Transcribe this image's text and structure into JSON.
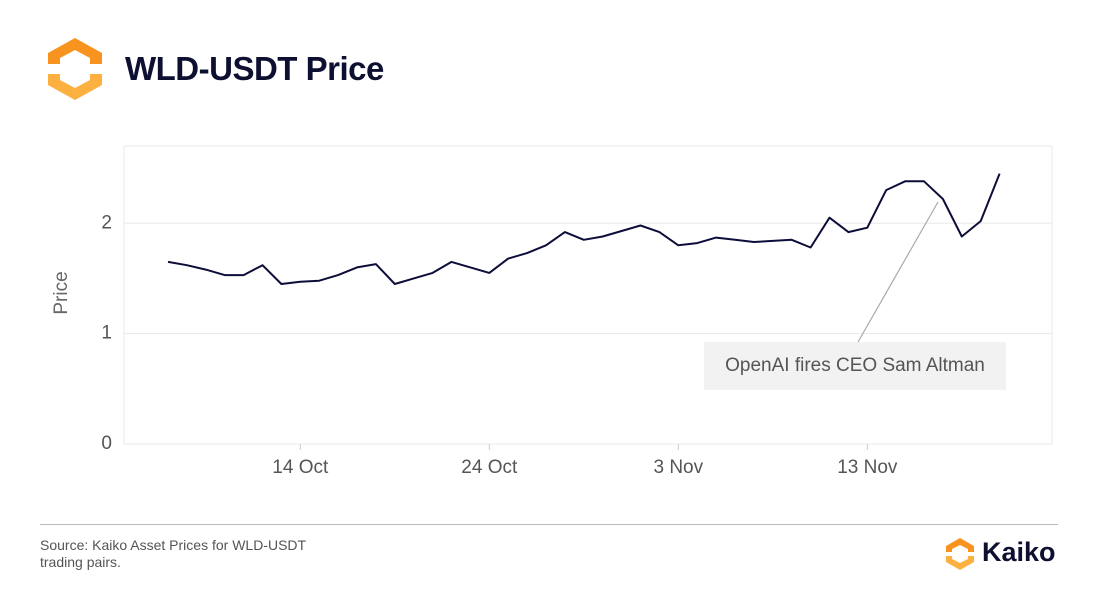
{
  "header": {
    "title": "WLD-USDT Price"
  },
  "chart_data": {
    "type": "line",
    "y_label": "Price",
    "x": [
      "7 Oct",
      "8 Oct",
      "9 Oct",
      "10 Oct",
      "11 Oct",
      "12 Oct",
      "13 Oct",
      "14 Oct",
      "15 Oct",
      "16 Oct",
      "17 Oct",
      "18 Oct",
      "19 Oct",
      "20 Oct",
      "21 Oct",
      "22 Oct",
      "23 Oct",
      "24 Oct",
      "25 Oct",
      "26 Oct",
      "27 Oct",
      "28 Oct",
      "29 Oct",
      "30 Oct",
      "31 Oct",
      "1 Nov",
      "2 Nov",
      "3 Nov",
      "4 Nov",
      "5 Nov",
      "6 Nov",
      "7 Nov",
      "8 Nov",
      "9 Nov",
      "10 Nov",
      "11 Nov",
      "12 Nov",
      "13 Nov",
      "14 Nov",
      "15 Nov",
      "16 Nov",
      "17 Nov",
      "18 Nov",
      "19 Nov",
      "20 Nov"
    ],
    "values": [
      1.65,
      1.62,
      1.58,
      1.53,
      1.53,
      1.62,
      1.45,
      1.47,
      1.48,
      1.53,
      1.6,
      1.63,
      1.45,
      1.5,
      1.55,
      1.65,
      1.6,
      1.55,
      1.68,
      1.73,
      1.8,
      1.92,
      1.85,
      1.88,
      1.93,
      1.98,
      1.92,
      1.8,
      1.82,
      1.87,
      1.85,
      1.83,
      1.84,
      1.85,
      1.78,
      2.05,
      1.92,
      1.96,
      2.3,
      2.38,
      2.38,
      2.22,
      1.88,
      2.02,
      2.45
    ],
    "color": "#0d0d3a",
    "xticks": [
      "14 Oct",
      "24 Oct",
      "3 Nov",
      "13 Nov"
    ],
    "ylim": [
      0,
      2.7
    ],
    "yticks": [
      0,
      1,
      2
    ],
    "grid": true,
    "annotation": "OpenAI fires CEO Sam Altman"
  },
  "footer": {
    "source": "Source: Kaiko Asset Prices for WLD-USDT trading pairs.",
    "brand": "Kaiko"
  }
}
